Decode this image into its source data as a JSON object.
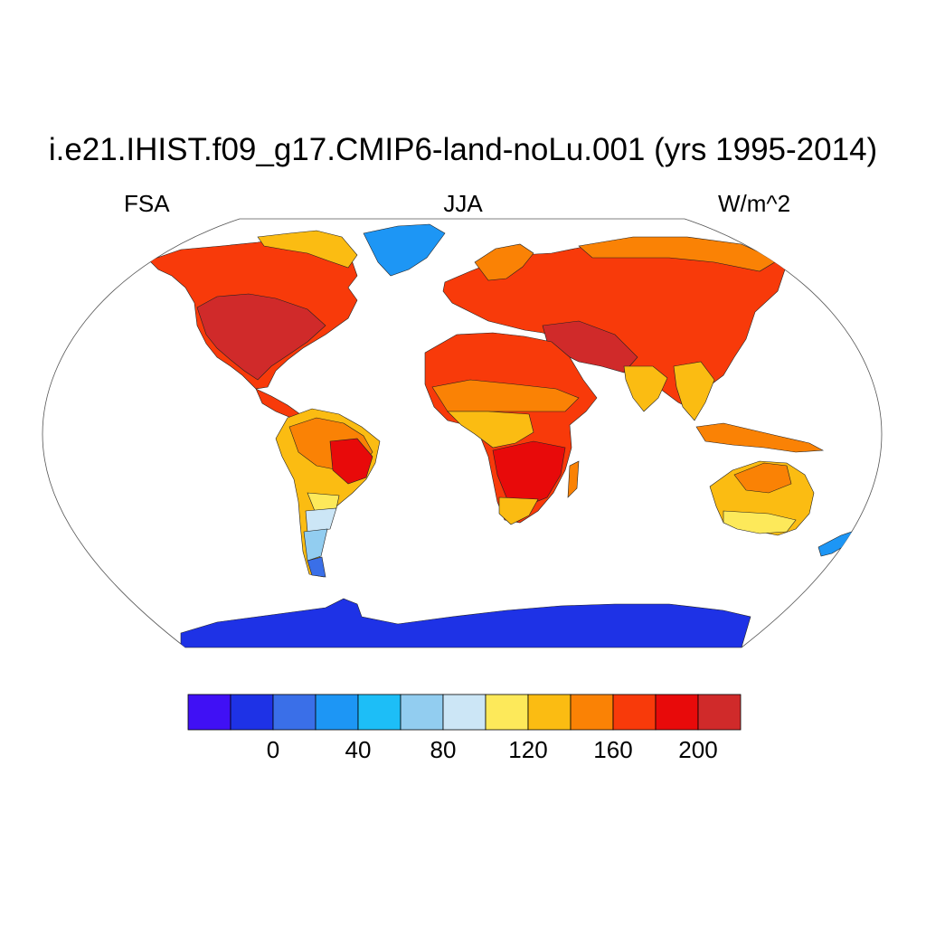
{
  "title": "i.e21.IHIST.f09_g17.CMIP6-land-noLu.001 (yrs 1995-2014)",
  "left_string": "FSA",
  "center_string": "JJA",
  "right_string": "W/m^2",
  "colorbar": {
    "colors": [
      "#4010f5",
      "#1e32e6",
      "#3a6fe8",
      "#1d96f5",
      "#1dbef7",
      "#92cdf0",
      "#cce6f6",
      "#fde95a",
      "#fbbc12",
      "#fa8205",
      "#f83a0a",
      "#e80a0a",
      "#d02a2a"
    ],
    "labels": [
      {
        "text": "0",
        "value": 0
      },
      {
        "text": "40",
        "value": 40
      },
      {
        "text": "80",
        "value": 80
      },
      {
        "text": "120",
        "value": 120
      },
      {
        "text": "160",
        "value": 160
      },
      {
        "text": "200",
        "value": 200
      }
    ],
    "level_min": -20,
    "level_step": 20
  },
  "regions": [
    {
      "name": "north-america",
      "color": "#f83a0a"
    },
    {
      "name": "usa-interior",
      "color": "#d02a2a"
    },
    {
      "name": "canada-arctic",
      "color": "#fbbc12"
    },
    {
      "name": "greenland",
      "color": "#1d96f5"
    },
    {
      "name": "central-america",
      "color": "#f83a0a"
    },
    {
      "name": "south-america",
      "color": "#fbbc12"
    },
    {
      "name": "amazon",
      "color": "#fa8205"
    },
    {
      "name": "brazil-core",
      "color": "#e80a0a"
    },
    {
      "name": "argentina-north",
      "color": "#fde95a"
    },
    {
      "name": "argentina-mid",
      "color": "#cce6f6"
    },
    {
      "name": "patagonia",
      "color": "#92cdf0"
    },
    {
      "name": "tierra-del-fuego",
      "color": "#3a6fe8"
    },
    {
      "name": "eurasia",
      "color": "#f83a0a"
    },
    {
      "name": "scandinavia",
      "color": "#fa8205"
    },
    {
      "name": "middle-east",
      "color": "#d02a2a"
    },
    {
      "name": "siberia-north",
      "color": "#fa8205"
    },
    {
      "name": "india",
      "color": "#fbbc12"
    },
    {
      "name": "southeast-asia",
      "color": "#fbbc12"
    },
    {
      "name": "indonesia",
      "color": "#fa8205"
    },
    {
      "name": "africa",
      "color": "#f83a0a"
    },
    {
      "name": "sahel",
      "color": "#fa8205"
    },
    {
      "name": "central-africa",
      "color": "#fbbc12"
    },
    {
      "name": "southern-africa",
      "color": "#e80a0a"
    },
    {
      "name": "south-africa-tip",
      "color": "#fbbc12"
    },
    {
      "name": "madagascar",
      "color": "#fa8205"
    },
    {
      "name": "australia",
      "color": "#fbbc12"
    },
    {
      "name": "australia-north",
      "color": "#fa8205"
    },
    {
      "name": "australia-south",
      "color": "#fde95a"
    },
    {
      "name": "new-zealand",
      "color": "#1d96f5"
    },
    {
      "name": "antarctica",
      "color": "#1e32e6"
    }
  ]
}
